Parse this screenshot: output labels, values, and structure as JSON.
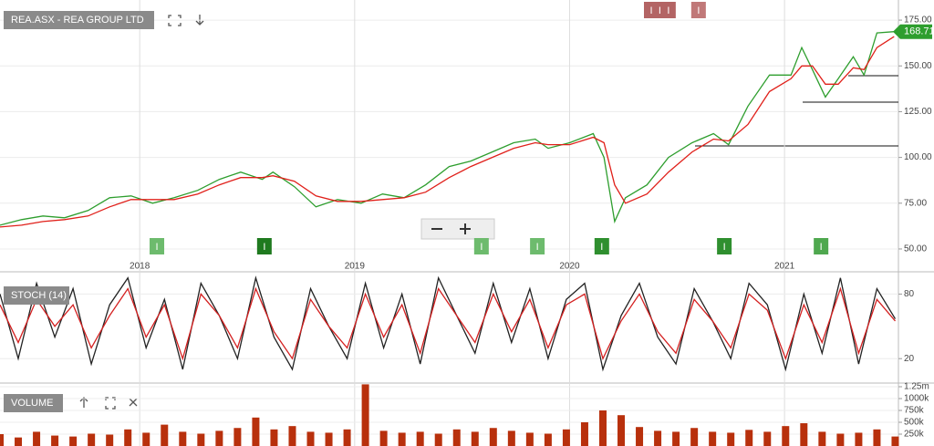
{
  "chart_data": [
    {
      "type": "line",
      "title": "REA.ASX - REA GROUP LTD",
      "x": [
        2017.35,
        2017.45,
        2017.55,
        2017.65,
        2017.76,
        2017.86,
        2017.96,
        2018.06,
        2018.16,
        2018.27,
        2018.37,
        2018.47,
        2018.57,
        2018.62,
        2018.72,
        2018.82,
        2018.92,
        2019.03,
        2019.13,
        2019.23,
        2019.33,
        2019.44,
        2019.54,
        2019.64,
        2019.74,
        2019.84,
        2019.9,
        2020.0,
        2020.11,
        2020.16,
        2020.21,
        2020.26,
        2020.36,
        2020.46,
        2020.57,
        2020.67,
        2020.74,
        2020.83,
        2020.93,
        2021.03,
        2021.08,
        2021.13,
        2021.19,
        2021.25,
        2021.32,
        2021.37,
        2021.43,
        2021.51
      ],
      "series": [
        {
          "color": "#2e9e2e",
          "values": [
            63,
            66,
            68,
            67,
            71,
            78,
            79,
            75,
            78,
            82,
            88,
            92,
            88,
            92,
            84,
            73,
            77,
            75,
            80,
            78,
            85,
            95,
            98,
            103,
            108,
            110,
            105,
            108,
            113,
            100,
            65,
            78,
            85,
            100,
            108,
            113,
            107,
            128,
            145,
            145,
            160,
            148,
            133,
            143,
            155,
            145,
            168,
            168.71
          ]
        },
        {
          "color": "#e0201a",
          "values": [
            62,
            63,
            65,
            66,
            68,
            73,
            77,
            77,
            77,
            80,
            85,
            89,
            89,
            90,
            87,
            79,
            76,
            76,
            77,
            78,
            81,
            89,
            95,
            100,
            105,
            108,
            107,
            107,
            111,
            108,
            85,
            75,
            80,
            92,
            103,
            110,
            109,
            118,
            136,
            143,
            150,
            150,
            140,
            140,
            149,
            148,
            160,
            166
          ]
        }
      ],
      "xlim": [
        2017.35,
        2021.53
      ],
      "xticks": [
        2018,
        2019,
        2020,
        2021
      ],
      "ylim": [
        44,
        186
      ],
      "yticks": [
        {
          "value": 50,
          "label": "50.00"
        },
        {
          "value": 75,
          "label": "75.00"
        },
        {
          "value": 100,
          "label": "100.00"
        },
        {
          "value": 125,
          "label": "125.00"
        },
        {
          "value": 150,
          "label": "150.00"
        },
        {
          "value": 175,
          "label": "175.00"
        }
      ],
      "grid": true,
      "events": [
        {
          "x": 2018.08,
          "label": "I",
          "position": "bottom",
          "color": "#6dbb6d"
        },
        {
          "x": 2018.58,
          "label": "I",
          "position": "bottom",
          "color": "#1f7a1f"
        },
        {
          "x": 2019.59,
          "label": "I",
          "position": "bottom",
          "color": "#6dbb6d"
        },
        {
          "x": 2019.85,
          "label": "I",
          "position": "bottom",
          "color": "#6dbb6d"
        },
        {
          "x": 2020.15,
          "label": "I",
          "position": "bottom",
          "color": "#2f8f2f"
        },
        {
          "x": 2020.72,
          "label": "I",
          "position": "bottom",
          "color": "#2f8f2f"
        },
        {
          "x": 2021.17,
          "label": "I",
          "position": "bottom",
          "color": "#4fa84f"
        },
        {
          "x": 2020.38,
          "label": "I",
          "position": "top",
          "color": "#b36464"
        },
        {
          "x": 2020.42,
          "label": "I",
          "position": "top",
          "color": "#b36464"
        },
        {
          "x": 2020.46,
          "label": "I",
          "position": "top",
          "color": "#b36464"
        },
        {
          "x": 2020.6,
          "label": "I",
          "position": "top",
          "color": "#c07878"
        }
      ]
    },
    {
      "type": "line",
      "title": "STOCH (14)",
      "x": [
        2017.35,
        2017.435,
        2017.52,
        2017.605,
        2017.69,
        2017.775,
        2017.86,
        2017.945,
        2018.03,
        2018.115,
        2018.2,
        2018.285,
        2018.37,
        2018.455,
        2018.54,
        2018.625,
        2018.71,
        2018.795,
        2018.88,
        2018.965,
        2019.05,
        2019.135,
        2019.22,
        2019.305,
        2019.39,
        2019.475,
        2019.56,
        2019.645,
        2019.73,
        2019.815,
        2019.9,
        2019.985,
        2020.07,
        2020.155,
        2020.24,
        2020.325,
        2020.41,
        2020.495,
        2020.58,
        2020.665,
        2020.75,
        2020.835,
        2020.92,
        2021.005,
        2021.09,
        2021.175,
        2021.26,
        2021.345,
        2021.43,
        2021.515
      ],
      "series": [
        {
          "color": "#222222",
          "values": [
            80,
            20,
            90,
            40,
            85,
            15,
            70,
            95,
            30,
            75,
            10,
            90,
            60,
            20,
            95,
            40,
            10,
            85,
            50,
            20,
            90,
            30,
            80,
            15,
            95,
            60,
            25,
            90,
            35,
            85,
            20,
            75,
            90,
            10,
            60,
            90,
            40,
            15,
            85,
            55,
            20,
            90,
            70,
            10,
            80,
            25,
            95,
            15,
            85,
            57
          ]
        },
        {
          "color": "#d42020",
          "values": [
            70,
            35,
            75,
            50,
            70,
            30,
            60,
            85,
            40,
            70,
            20,
            80,
            60,
            30,
            85,
            45,
            20,
            75,
            50,
            30,
            80,
            40,
            70,
            25,
            85,
            60,
            35,
            80,
            45,
            75,
            30,
            70,
            80,
            20,
            55,
            80,
            45,
            25,
            75,
            55,
            30,
            80,
            65,
            20,
            70,
            35,
            85,
            25,
            75,
            55
          ]
        }
      ],
      "xlim": [
        2017.35,
        2021.53
      ],
      "ylim": [
        -1,
        99
      ],
      "yticks": [
        20,
        80
      ],
      "grid": true
    },
    {
      "type": "bar",
      "title": "VOLUME",
      "x": [
        2017.35,
        2017.435,
        2017.52,
        2017.605,
        2017.69,
        2017.775,
        2017.86,
        2017.945,
        2018.03,
        2018.115,
        2018.2,
        2018.285,
        2018.37,
        2018.455,
        2018.54,
        2018.625,
        2018.71,
        2018.795,
        2018.88,
        2018.965,
        2019.05,
        2019.135,
        2019.22,
        2019.305,
        2019.39,
        2019.475,
        2019.56,
        2019.645,
        2019.73,
        2019.815,
        2019.9,
        2019.985,
        2020.07,
        2020.155,
        2020.24,
        2020.325,
        2020.41,
        2020.495,
        2020.58,
        2020.665,
        2020.75,
        2020.835,
        2020.92,
        2021.005,
        2021.09,
        2021.175,
        2021.26,
        2021.345,
        2021.43,
        2021.515
      ],
      "color": "#b8300c",
      "values": [
        250000,
        180000,
        300000,
        220000,
        200000,
        260000,
        240000,
        350000,
        280000,
        450000,
        300000,
        260000,
        320000,
        380000,
        600000,
        350000,
        420000,
        300000,
        280000,
        350000,
        1300000,
        320000,
        280000,
        300000,
        260000,
        350000,
        300000,
        380000,
        320000,
        280000,
        260000,
        350000,
        500000,
        750000,
        650000,
        400000,
        320000,
        300000,
        380000,
        300000,
        280000,
        340000,
        300000,
        420000,
        480000,
        300000,
        260000,
        280000,
        350000,
        200000
      ],
      "xlim": [
        2017.35,
        2021.53
      ],
      "ylim": [
        0,
        1327000
      ],
      "yticks": [
        {
          "value": 250000,
          "label": "250k"
        },
        {
          "value": 500000,
          "label": "500k"
        },
        {
          "value": 750000,
          "label": "750k"
        },
        {
          "value": 1000000,
          "label": "1000k"
        },
        {
          "value": 1250000,
          "label": "1.25m"
        }
      ],
      "grid": true
    }
  ]
}
